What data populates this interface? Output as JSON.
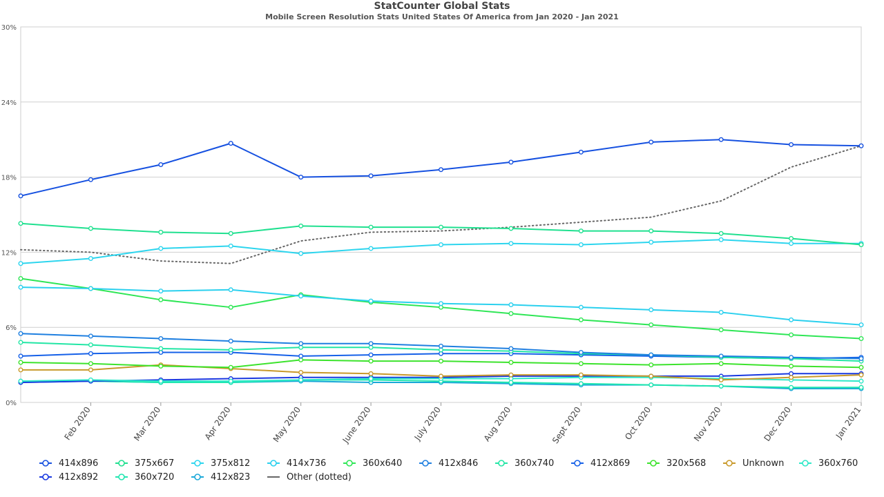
{
  "chart_data": {
    "type": "line",
    "title": "StatCounter Global Stats",
    "subtitle": "Mobile Screen Resolution Stats United States Of America from Jan 2020 - Jan 2021",
    "x": [
      "Jan 2020",
      "Feb 2020",
      "Mar 2020",
      "Apr 2020",
      "May 2020",
      "June 2020",
      "July 2020",
      "Aug 2020",
      "Sept 2020",
      "Oct 2020",
      "Nov 2020",
      "Dec 2020",
      "Jan 2021"
    ],
    "x_tick_labels": [
      "Feb 2020",
      "Mar 2020",
      "Apr 2020",
      "May 2020",
      "June 2020",
      "July 2020",
      "Aug 2020",
      "Sept 2020",
      "Oct 2020",
      "Nov 2020",
      "Dec 2020",
      "Jan 2021"
    ],
    "y_ticks": [
      "0%",
      "6%",
      "12%",
      "18%",
      "24%",
      "30%"
    ],
    "ylim": [
      0,
      30
    ],
    "grid": true,
    "legend_position": "bottom",
    "series": [
      {
        "name": "414x896",
        "color": "#1550e0",
        "values": [
          16.5,
          17.8,
          19.0,
          20.7,
          18.0,
          18.1,
          18.6,
          19.2,
          20.0,
          20.8,
          21.0,
          20.6,
          20.5
        ]
      },
      {
        "name": "375x667",
        "color": "#1fe08f",
        "values": [
          14.3,
          13.9,
          13.6,
          13.5,
          14.1,
          14.0,
          14.0,
          13.9,
          13.7,
          13.7,
          13.5,
          13.1,
          12.6
        ]
      },
      {
        "name": "375x812",
        "color": "#2cd5ee",
        "values": [
          11.1,
          11.5,
          12.3,
          12.5,
          11.9,
          12.3,
          12.6,
          12.7,
          12.6,
          12.8,
          13.0,
          12.7,
          12.7
        ]
      },
      {
        "name": "414x736",
        "color": "#2ad0ee",
        "values": [
          9.2,
          9.1,
          8.9,
          9.0,
          8.5,
          8.1,
          7.9,
          7.8,
          7.6,
          7.4,
          7.2,
          6.6,
          6.2
        ]
      },
      {
        "name": "360x640",
        "color": "#2ee655",
        "values": [
          9.9,
          9.1,
          8.2,
          7.6,
          8.6,
          8.0,
          7.6,
          7.1,
          6.6,
          6.2,
          5.8,
          5.4,
          5.1
        ]
      },
      {
        "name": "412x846",
        "color": "#1e7fe0",
        "values": [
          5.5,
          5.3,
          5.1,
          4.9,
          4.7,
          4.7,
          4.5,
          4.3,
          4.0,
          3.8,
          3.7,
          3.6,
          3.5
        ]
      },
      {
        "name": "360x740",
        "color": "#22e6a5",
        "values": [
          4.8,
          4.6,
          4.3,
          4.2,
          4.4,
          4.4,
          4.2,
          4.1,
          3.9,
          3.8,
          3.6,
          3.5,
          3.3
        ]
      },
      {
        "name": "412x869",
        "color": "#1560e8",
        "values": [
          3.7,
          3.9,
          4.0,
          4.0,
          3.7,
          3.8,
          3.9,
          3.9,
          3.8,
          3.7,
          3.6,
          3.5,
          3.6
        ]
      },
      {
        "name": "320x568",
        "color": "#3ce32c",
        "values": [
          3.2,
          3.1,
          2.9,
          2.8,
          3.4,
          3.3,
          3.3,
          3.2,
          3.1,
          3.0,
          3.1,
          2.9,
          2.8
        ]
      },
      {
        "name": "Unknown",
        "color": "#c8992a",
        "values": [
          2.6,
          2.6,
          3.0,
          2.7,
          2.4,
          2.3,
          2.1,
          2.2,
          2.2,
          2.1,
          1.8,
          2.0,
          2.2
        ]
      },
      {
        "name": "360x760",
        "color": "#2fe8c8",
        "values": [
          1.7,
          1.8,
          1.7,
          1.7,
          1.8,
          1.9,
          1.9,
          1.9,
          2.0,
          2.0,
          1.9,
          1.8,
          1.7
        ]
      },
      {
        "name": "412x892",
        "color": "#1838e0",
        "values": [
          1.6,
          1.7,
          1.8,
          1.9,
          2.0,
          2.0,
          2.0,
          2.1,
          2.1,
          2.1,
          2.1,
          2.3,
          2.3
        ]
      },
      {
        "name": "360x720",
        "color": "#20e6b0",
        "values": [
          1.7,
          1.7,
          1.6,
          1.6,
          1.8,
          1.8,
          1.7,
          1.6,
          1.5,
          1.4,
          1.3,
          1.2,
          1.2
        ]
      },
      {
        "name": "412x823",
        "color": "#1aa8d8",
        "values": [
          1.6,
          1.7,
          1.6,
          1.6,
          1.7,
          1.6,
          1.6,
          1.5,
          1.4,
          1.4,
          1.3,
          1.1,
          1.1
        ]
      }
    ],
    "other": {
      "name": "Other (dotted)",
      "color": "#666666",
      "values": [
        12.2,
        12.0,
        11.3,
        11.1,
        12.9,
        13.6,
        13.7,
        14.0,
        14.4,
        14.8,
        16.1,
        18.8,
        20.5
      ]
    }
  }
}
